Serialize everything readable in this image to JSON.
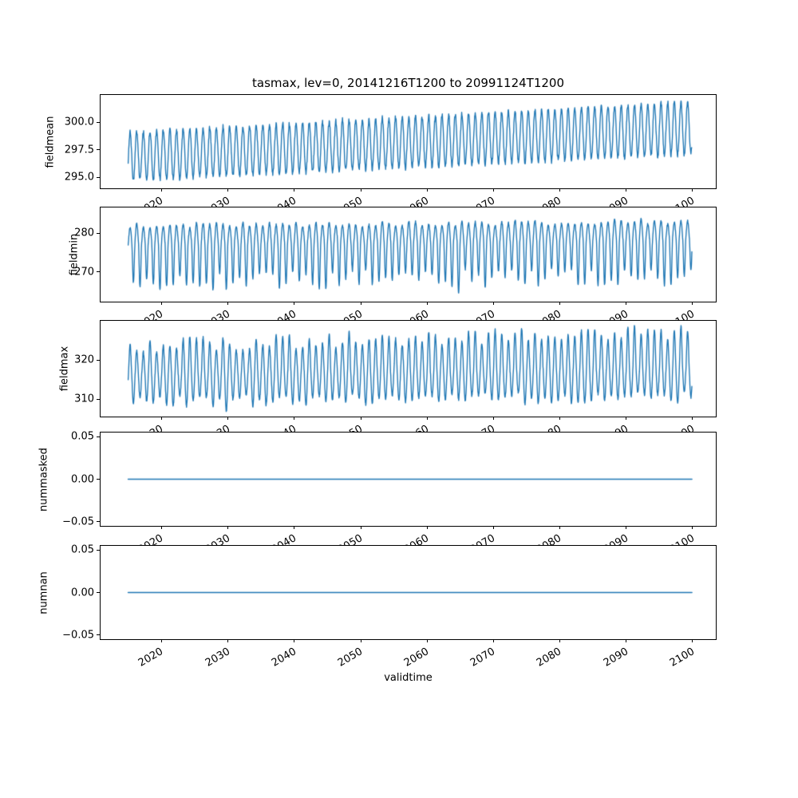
{
  "figure": {
    "title": "tasmax, lev=0, 20141216T1200 to 20991124T1200",
    "line_color": "#1f77b4",
    "text_color": "#000000",
    "background": "#ffffff"
  },
  "x_axis": {
    "label": "validtime",
    "ticks": [
      2020,
      2030,
      2040,
      2050,
      2060,
      2070,
      2080,
      2090,
      2100
    ],
    "tick_labels": [
      "2020",
      "2030",
      "2040",
      "2050",
      "2060",
      "2070",
      "2080",
      "2090",
      "2100"
    ],
    "tick_rotation_deg": 30,
    "xlim": [
      2010.8,
      2103.5
    ],
    "data_start": 2014.96,
    "data_end": 2099.9
  },
  "chart_data": [
    {
      "type": "line",
      "ylabel": "fieldmean",
      "ylim": [
        294.0,
        302.5
      ],
      "yticks": [
        295.0,
        297.5,
        300.0
      ],
      "ytick_labels": [
        "295.0",
        "297.5",
        "300.0"
      ],
      "summary": {
        "shape": "annual sinusoidal oscillation with steady warming trend",
        "mean_2015": 296.9,
        "mean_2100": 299.5,
        "seasonal_amplitude_2015": 2.2,
        "seasonal_amplitude_2100": 2.4,
        "approx_min": 294.5,
        "approx_max": 302.2
      },
      "model": {
        "kind": "seasonal",
        "mean_start": 296.9,
        "mean_end": 299.5,
        "amp_start": 2.2,
        "amp_end": 2.4,
        "noise": 0.3,
        "samples_per_year": 24,
        "seed": 3
      }
    },
    {
      "type": "line",
      "ylabel": "fieldmin",
      "ylim": [
        262.4,
        286.6
      ],
      "yticks": [
        270,
        280
      ],
      "ytick_labels": [
        "270",
        "280"
      ],
      "summary": {
        "shape": "flat-topped annual cycle with sharp cold downward spikes",
        "typical_top": 282,
        "typical_low_range": [
          266,
          271
        ],
        "deepest_spike": {
          "year": 2064,
          "value": 264
        },
        "trend": "slight upward (~+1 K over record)"
      },
      "model": {
        "kind": "asym",
        "base_start": 277.7,
        "base_end": 278.9,
        "up_amp": 4.1,
        "up_jitter": 0.7,
        "up_growth": 0,
        "sharp_up": 1.0,
        "down_min": 7.5,
        "down_max": 12.5,
        "sharp_down": 1.6,
        "noise": 0.4,
        "samples_per_year": 30,
        "seed": 7,
        "special_year": 2064,
        "special_depth": 14.0
      }
    },
    {
      "type": "line",
      "ylabel": "fieldmax",
      "ylim": [
        305.6,
        330.0
      ],
      "yticks": [
        310,
        320
      ],
      "ytick_labels": [
        "310",
        "320"
      ],
      "summary": {
        "shape": "annual cycle with variable hot upward spikes, growing late century",
        "typical_low_range": [
          308,
          312
        ],
        "typical_high_range_early": [
          321,
          326
        ],
        "typical_high_range_late": [
          324,
          329
        ],
        "trend": "upward"
      },
      "model": {
        "kind": "asym",
        "base_start": 316.3,
        "base_end": 317.6,
        "up_amp": 7.5,
        "up_jitter": 2.0,
        "up_growth": 2.0,
        "sharp_up": 1.25,
        "down_min": 5.5,
        "down_max": 8.5,
        "sharp_down": 1.1,
        "noise": 0.5,
        "samples_per_year": 30,
        "seed": 11,
        "special_year": -1,
        "special_depth": 0
      }
    },
    {
      "type": "line",
      "ylabel": "nummasked",
      "ylim": [
        -0.055,
        0.055
      ],
      "yticks": [
        -0.05,
        0.0,
        0.05
      ],
      "ytick_labels": [
        "−0.05",
        "0.00",
        "0.05"
      ],
      "summary": {
        "shape": "constant",
        "constant_value": 0.0
      },
      "model": {
        "kind": "constant",
        "value": 0.0
      }
    },
    {
      "type": "line",
      "ylabel": "numnan",
      "ylim": [
        -0.055,
        0.055
      ],
      "yticks": [
        -0.05,
        0.0,
        0.05
      ],
      "ytick_labels": [
        "−0.05",
        "0.00",
        "0.05"
      ],
      "summary": {
        "shape": "constant",
        "constant_value": 0.0
      },
      "model": {
        "kind": "constant",
        "value": 0.0
      }
    }
  ]
}
